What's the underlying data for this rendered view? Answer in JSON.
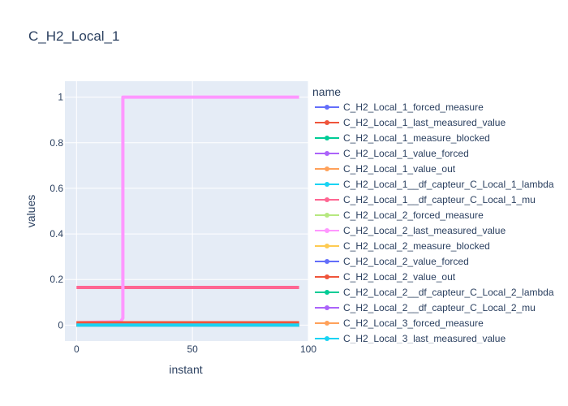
{
  "chart_data": {
    "type": "line",
    "title": "C_H2_Local_1",
    "xlabel": "instant",
    "ylabel": "values",
    "xlim": [
      -5,
      100
    ],
    "ylim": [
      -0.07,
      1.07
    ],
    "x_ticks": [
      0,
      50,
      100
    ],
    "y_ticks": [
      0,
      0.2,
      0.4,
      0.6,
      0.8,
      1
    ],
    "x_tick_labels": [
      "0",
      "50",
      "100"
    ],
    "y_tick_labels": [
      "0",
      "0.2",
      "0.4",
      "0.6",
      "0.8",
      "1"
    ],
    "grid": true,
    "legend_title": "name",
    "legend_placement": "right",
    "series": [
      {
        "name": "C_H2_Local_1_forced_measure",
        "color": "#636efa",
        "x": [
          0,
          96
        ],
        "y": [
          0,
          0
        ]
      },
      {
        "name": "C_H2_Local_1_last_measured_value",
        "color": "#EF553B",
        "x": [
          0,
          96
        ],
        "y": [
          0.01,
          0.01
        ]
      },
      {
        "name": "C_H2_Local_1_measure_blocked",
        "color": "#00cc96",
        "x": [
          0,
          96
        ],
        "y": [
          0,
          0
        ]
      },
      {
        "name": "C_H2_Local_1_value_forced",
        "color": "#ab63fa",
        "x": [
          0,
          96
        ],
        "y": [
          0,
          0
        ]
      },
      {
        "name": "C_H2_Local_1_value_out",
        "color": "#FFA15A",
        "x": [
          0,
          96
        ],
        "y": [
          0.01,
          0.01
        ]
      },
      {
        "name": "C_H2_Local_1__df_capteur_C_Local_1_lambda",
        "color": "#19d3f3",
        "x": [
          0,
          96
        ],
        "y": [
          0,
          0
        ]
      },
      {
        "name": "C_H2_Local_1__df_capteur_C_Local_1_mu",
        "color": "#FF6692",
        "x": [
          0,
          96
        ],
        "y": [
          0.165,
          0.165
        ]
      },
      {
        "name": "C_H2_Local_2_forced_measure",
        "color": "#B6E880",
        "x": [
          0,
          96
        ],
        "y": [
          0,
          0
        ]
      },
      {
        "name": "C_H2_Local_2_last_measured_value",
        "color": "#FF97FF",
        "x": [
          0,
          19,
          20,
          20,
          96
        ],
        "y": [
          0.01,
          0.015,
          0.03,
          1,
          1
        ]
      },
      {
        "name": "C_H2_Local_2_measure_blocked",
        "color": "#FECB52",
        "x": [
          0,
          96
        ],
        "y": [
          0,
          0
        ]
      },
      {
        "name": "C_H2_Local_2_value_forced",
        "color": "#636efa",
        "x": [
          0,
          96
        ],
        "y": [
          0,
          0
        ]
      },
      {
        "name": "C_H2_Local_2_value_out",
        "color": "#EF553B",
        "x": [
          0,
          96
        ],
        "y": [
          0.01,
          0.01
        ]
      },
      {
        "name": "C_H2_Local_2__df_capteur_C_Local_2_lambda",
        "color": "#00cc96",
        "x": [
          0,
          96
        ],
        "y": [
          0,
          0
        ]
      },
      {
        "name": "C_H2_Local_2__df_capteur_C_Local_2_mu",
        "color": "#ab63fa",
        "x": [
          0,
          96
        ],
        "y": [
          0,
          0
        ]
      },
      {
        "name": "C_H2_Local_3_forced_measure",
        "color": "#FFA15A",
        "x": [
          0,
          96
        ],
        "y": [
          0,
          0
        ]
      },
      {
        "name": "C_H2_Local_3_last_measured_value",
        "color": "#19d3f3",
        "x": [
          0,
          96
        ],
        "y": [
          0,
          0
        ]
      }
    ]
  }
}
